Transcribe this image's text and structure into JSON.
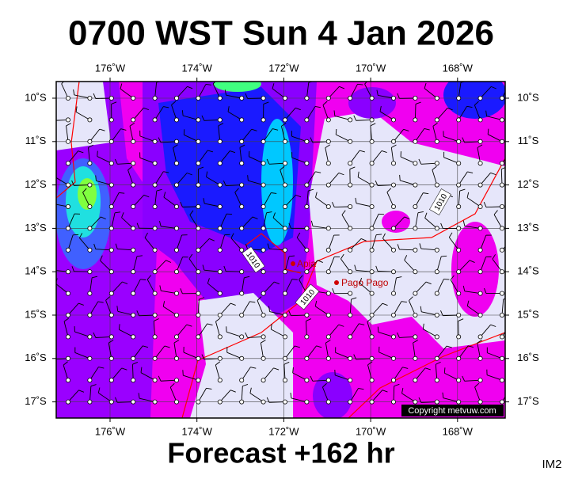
{
  "header": {
    "title": "0700 WST Sun 4 Jan 2026"
  },
  "map": {
    "lon_labels": [
      "176˚W",
      "174˚W",
      "172˚W",
      "170˚W",
      "168˚W"
    ],
    "lat_labels": [
      "10˚S",
      "11˚S",
      "12˚S",
      "13˚S",
      "14˚S",
      "15˚S",
      "16˚S",
      "17˚S"
    ],
    "places": [
      "Apia",
      "Pago Pago"
    ],
    "isobar_labels": [
      "1010",
      "1010",
      "1010"
    ],
    "copyright": "Copyright metvuw.com"
  },
  "footer": {
    "forecast": "Forecast +162 hr",
    "code": "IM2"
  }
}
